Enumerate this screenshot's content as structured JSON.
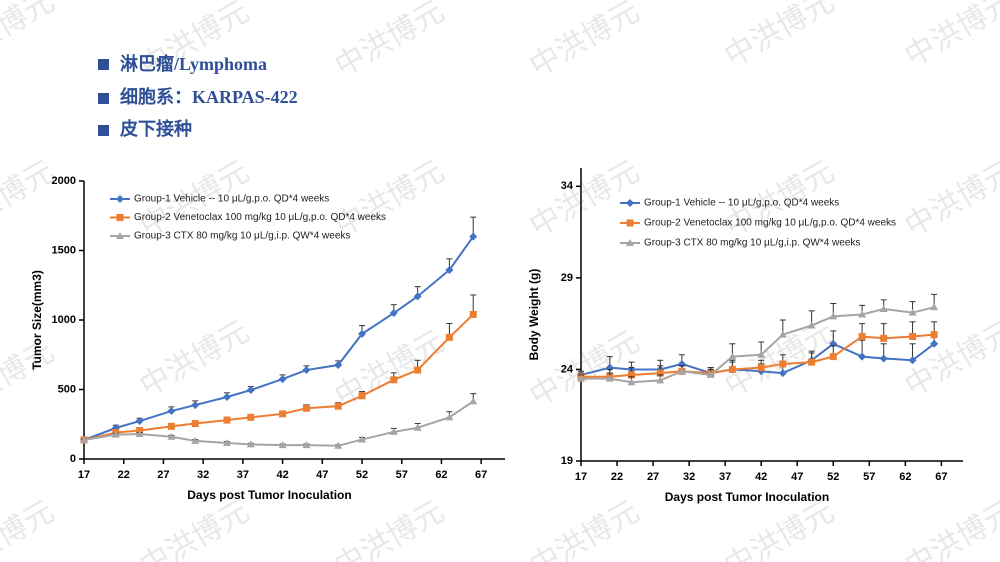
{
  "watermark": "中洪博元",
  "bullets": [
    "淋巴瘤/Lymphoma",
    "细胞系：KARPAS-422",
    "皮下接种"
  ],
  "chart_data": [
    {
      "type": "line",
      "x_label": "Days post Tumor Inoculation",
      "y_label": "Tumor Size(mm3)",
      "xlim": [
        17,
        70
      ],
      "xticks": [
        17,
        22,
        27,
        32,
        37,
        42,
        47,
        52,
        57,
        62,
        67
      ],
      "ylim": [
        0,
        2000
      ],
      "yticks": [
        0,
        500,
        1000,
        1500,
        2000
      ],
      "legend": "upper left",
      "x": [
        17,
        21,
        24,
        28,
        31,
        35,
        38,
        42,
        45,
        49,
        52,
        56,
        59,
        63,
        66
      ],
      "series": [
        {
          "name": "Group-1 Vehicle -- 10 μL/g,p.o. QD*4 weeks",
          "color": "#4472c4",
          "marker": "diamond",
          "values": [
            137,
            223,
            273,
            345,
            388,
            446,
            496,
            575,
            640,
            676,
            900,
            1050,
            1170,
            1360,
            1600
          ],
          "errors": [
            5,
            20,
            20,
            30,
            30,
            30,
            25,
            30,
            30,
            30,
            60,
            60,
            70,
            80,
            140
          ]
        },
        {
          "name": "Group-2 Venetoclax 100 mg/kg 10 μL/g,p.o. QD*4 weeks",
          "color": "#ed7d31",
          "marker": "square",
          "values": [
            137,
            190,
            205,
            235,
            255,
            280,
            300,
            325,
            365,
            380,
            455,
            570,
            640,
            875,
            1040
          ],
          "errors": [
            5,
            15,
            15,
            15,
            15,
            20,
            20,
            20,
            25,
            25,
            30,
            50,
            70,
            100,
            140
          ]
        },
        {
          "name": "Group-3 CTX 80 mg/kg 10 μL/g,i.p. QW*4 weeks",
          "color": "#a5a5a5",
          "marker": "triangle",
          "values": [
            137,
            175,
            180,
            160,
            130,
            115,
            105,
            100,
            100,
            95,
            140,
            195,
            225,
            300,
            415
          ],
          "errors": [
            5,
            10,
            10,
            10,
            10,
            10,
            8,
            8,
            8,
            8,
            15,
            25,
            30,
            40,
            55
          ]
        }
      ]
    },
    {
      "type": "line",
      "x_label": "Days post Tumor Inoculation",
      "y_label": "Body Weight (g)",
      "xlim": [
        17,
        70
      ],
      "xticks": [
        17,
        22,
        27,
        32,
        37,
        42,
        47,
        52,
        57,
        62,
        67
      ],
      "ylim": [
        19,
        35
      ],
      "yticks": [
        19,
        24,
        29,
        34
      ],
      "legend": "upper left",
      "x": [
        17,
        21,
        24,
        28,
        31,
        35,
        38,
        42,
        45,
        49,
        52,
        56,
        59,
        63,
        66
      ],
      "series": [
        {
          "name": "Group-1 Vehicle -- 10 μL/g,p.o. QD*4 weeks",
          "color": "#4472c4",
          "marker": "diamond",
          "values": [
            23.7,
            24.1,
            24.0,
            24.0,
            24.3,
            23.8,
            24.0,
            23.9,
            23.8,
            24.5,
            25.4,
            24.7,
            24.6,
            24.5,
            25.4
          ],
          "errors": [
            0.2,
            0.6,
            0.4,
            0.5,
            0.5,
            0.3,
            0.5,
            0.4,
            0.5,
            0.5,
            0.7,
            0.9,
            0.8,
            0.9,
            0.6
          ]
        },
        {
          "name": "Group-2 Venetoclax 100 mg/kg 10 μL/g,p.o. QD*4 weeks",
          "color": "#ed7d31",
          "marker": "square",
          "values": [
            23.6,
            23.6,
            23.7,
            23.8,
            23.9,
            23.8,
            24.0,
            24.1,
            24.3,
            24.4,
            24.7,
            25.8,
            25.7,
            25.8,
            25.9
          ],
          "errors": [
            0.2,
            0.4,
            0.4,
            0.4,
            0.3,
            0.3,
            0.4,
            0.4,
            0.5,
            0.5,
            0.6,
            0.7,
            0.8,
            0.8,
            0.7
          ]
        },
        {
          "name": "Group-3 CTX 80 mg/kg 10 μL/g,i.p. QW*4 weeks",
          "color": "#a5a5a5",
          "marker": "triangle",
          "values": [
            23.5,
            23.5,
            23.3,
            23.4,
            23.9,
            23.7,
            24.7,
            24.8,
            25.9,
            26.4,
            26.9,
            27.0,
            27.3,
            27.1,
            27.4
          ],
          "errors": [
            0.2,
            0.3,
            0.3,
            0.3,
            0.3,
            0.3,
            0.7,
            0.7,
            0.8,
            0.8,
            0.7,
            0.5,
            0.5,
            0.6,
            0.7
          ]
        }
      ]
    }
  ]
}
